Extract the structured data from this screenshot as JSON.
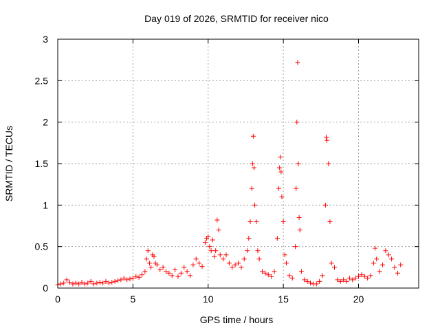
{
  "chart_data": {
    "type": "scatter",
    "title": "Day 019 of 2026, SRMTID for receiver nico",
    "xlabel": "GPS time / hours",
    "ylabel": "SRMTID / TECUs",
    "xlim": [
      0,
      24
    ],
    "ylim": [
      0,
      3
    ],
    "xticks": [
      0,
      5,
      10,
      15,
      20
    ],
    "xtick_labels": [
      "0",
      "5",
      "10",
      "15",
      "20"
    ],
    "yticks": [
      0,
      0.5,
      1,
      1.5,
      2,
      2.5,
      3
    ],
    "ytick_labels": [
      "0",
      "0.5",
      "1",
      "1.5",
      "2",
      "2.5",
      "3"
    ],
    "grid": true,
    "marker": "+",
    "color": "#ff0000",
    "series": [
      {
        "name": "SRMTID",
        "points": [
          [
            0.0,
            0.04
          ],
          [
            0.2,
            0.05
          ],
          [
            0.4,
            0.06
          ],
          [
            0.6,
            0.1
          ],
          [
            0.8,
            0.07
          ],
          [
            1.0,
            0.05
          ],
          [
            1.2,
            0.06
          ],
          [
            1.4,
            0.05
          ],
          [
            1.6,
            0.07
          ],
          [
            1.8,
            0.05
          ],
          [
            2.0,
            0.06
          ],
          [
            2.2,
            0.08
          ],
          [
            2.4,
            0.05
          ],
          [
            2.6,
            0.06
          ],
          [
            2.8,
            0.07
          ],
          [
            3.0,
            0.06
          ],
          [
            3.2,
            0.08
          ],
          [
            3.4,
            0.06
          ],
          [
            3.6,
            0.07
          ],
          [
            3.8,
            0.08
          ],
          [
            4.0,
            0.09
          ],
          [
            4.2,
            0.1
          ],
          [
            4.4,
            0.12
          ],
          [
            4.6,
            0.1
          ],
          [
            4.8,
            0.11
          ],
          [
            5.0,
            0.12
          ],
          [
            5.2,
            0.14
          ],
          [
            5.4,
            0.13
          ],
          [
            5.6,
            0.16
          ],
          [
            5.8,
            0.2
          ],
          [
            5.9,
            0.35
          ],
          [
            6.0,
            0.45
          ],
          [
            6.1,
            0.3
          ],
          [
            6.2,
            0.25
          ],
          [
            6.3,
            0.4
          ],
          [
            6.4,
            0.38
          ],
          [
            6.5,
            0.3
          ],
          [
            6.6,
            0.28
          ],
          [
            6.8,
            0.22
          ],
          [
            7.0,
            0.25
          ],
          [
            7.2,
            0.2
          ],
          [
            7.4,
            0.18
          ],
          [
            7.6,
            0.15
          ],
          [
            7.8,
            0.22
          ],
          [
            8.0,
            0.14
          ],
          [
            8.2,
            0.18
          ],
          [
            8.4,
            0.25
          ],
          [
            8.6,
            0.2
          ],
          [
            8.8,
            0.15
          ],
          [
            9.0,
            0.28
          ],
          [
            9.2,
            0.35
          ],
          [
            9.4,
            0.3
          ],
          [
            9.6,
            0.26
          ],
          [
            9.8,
            0.55
          ],
          [
            9.9,
            0.6
          ],
          [
            10.0,
            0.62
          ],
          [
            10.1,
            0.5
          ],
          [
            10.2,
            0.45
          ],
          [
            10.3,
            0.58
          ],
          [
            10.4,
            0.38
          ],
          [
            10.5,
            0.45
          ],
          [
            10.6,
            0.82
          ],
          [
            10.7,
            0.7
          ],
          [
            10.8,
            0.4
          ],
          [
            11.0,
            0.35
          ],
          [
            11.2,
            0.4
          ],
          [
            11.4,
            0.3
          ],
          [
            11.6,
            0.25
          ],
          [
            11.8,
            0.28
          ],
          [
            12.0,
            0.3
          ],
          [
            12.2,
            0.25
          ],
          [
            12.4,
            0.35
          ],
          [
            12.6,
            0.45
          ],
          [
            12.7,
            0.6
          ],
          [
            12.8,
            0.8
          ],
          [
            12.9,
            1.2
          ],
          [
            12.95,
            1.5
          ],
          [
            13.0,
            1.83
          ],
          [
            13.05,
            1.45
          ],
          [
            13.1,
            1.0
          ],
          [
            13.2,
            0.8
          ],
          [
            13.3,
            0.45
          ],
          [
            13.4,
            0.35
          ],
          [
            13.6,
            0.2
          ],
          [
            13.8,
            0.18
          ],
          [
            14.0,
            0.16
          ],
          [
            14.2,
            0.14
          ],
          [
            14.4,
            0.2
          ],
          [
            14.6,
            0.6
          ],
          [
            14.7,
            1.2
          ],
          [
            14.75,
            1.45
          ],
          [
            14.8,
            1.58
          ],
          [
            14.85,
            1.4
          ],
          [
            14.9,
            1.1
          ],
          [
            15.0,
            0.8
          ],
          [
            15.1,
            0.4
          ],
          [
            15.2,
            0.3
          ],
          [
            15.4,
            0.15
          ],
          [
            15.6,
            0.12
          ],
          [
            15.8,
            0.5
          ],
          [
            15.85,
            1.2
          ],
          [
            15.9,
            2.0
          ],
          [
            15.95,
            2.72
          ],
          [
            16.0,
            1.5
          ],
          [
            16.05,
            0.85
          ],
          [
            16.1,
            0.7
          ],
          [
            16.2,
            0.2
          ],
          [
            16.4,
            0.1
          ],
          [
            16.6,
            0.08
          ],
          [
            16.8,
            0.06
          ],
          [
            17.0,
            0.05
          ],
          [
            17.2,
            0.05
          ],
          [
            17.4,
            0.08
          ],
          [
            17.6,
            0.15
          ],
          [
            17.8,
            1.0
          ],
          [
            17.85,
            1.82
          ],
          [
            17.9,
            1.78
          ],
          [
            18.0,
            1.5
          ],
          [
            18.1,
            0.8
          ],
          [
            18.2,
            0.3
          ],
          [
            18.4,
            0.25
          ],
          [
            18.6,
            0.1
          ],
          [
            18.8,
            0.08
          ],
          [
            19.0,
            0.1
          ],
          [
            19.2,
            0.08
          ],
          [
            19.4,
            0.12
          ],
          [
            19.6,
            0.1
          ],
          [
            19.8,
            0.12
          ],
          [
            20.0,
            0.14
          ],
          [
            20.2,
            0.16
          ],
          [
            20.4,
            0.14
          ],
          [
            20.6,
            0.12
          ],
          [
            20.8,
            0.15
          ],
          [
            21.0,
            0.3
          ],
          [
            21.1,
            0.48
          ],
          [
            21.2,
            0.35
          ],
          [
            21.4,
            0.2
          ],
          [
            21.6,
            0.28
          ],
          [
            21.8,
            0.45
          ],
          [
            22.0,
            0.4
          ],
          [
            22.2,
            0.35
          ],
          [
            22.4,
            0.25
          ],
          [
            22.6,
            0.18
          ],
          [
            22.8,
            0.28
          ]
        ]
      }
    ]
  }
}
